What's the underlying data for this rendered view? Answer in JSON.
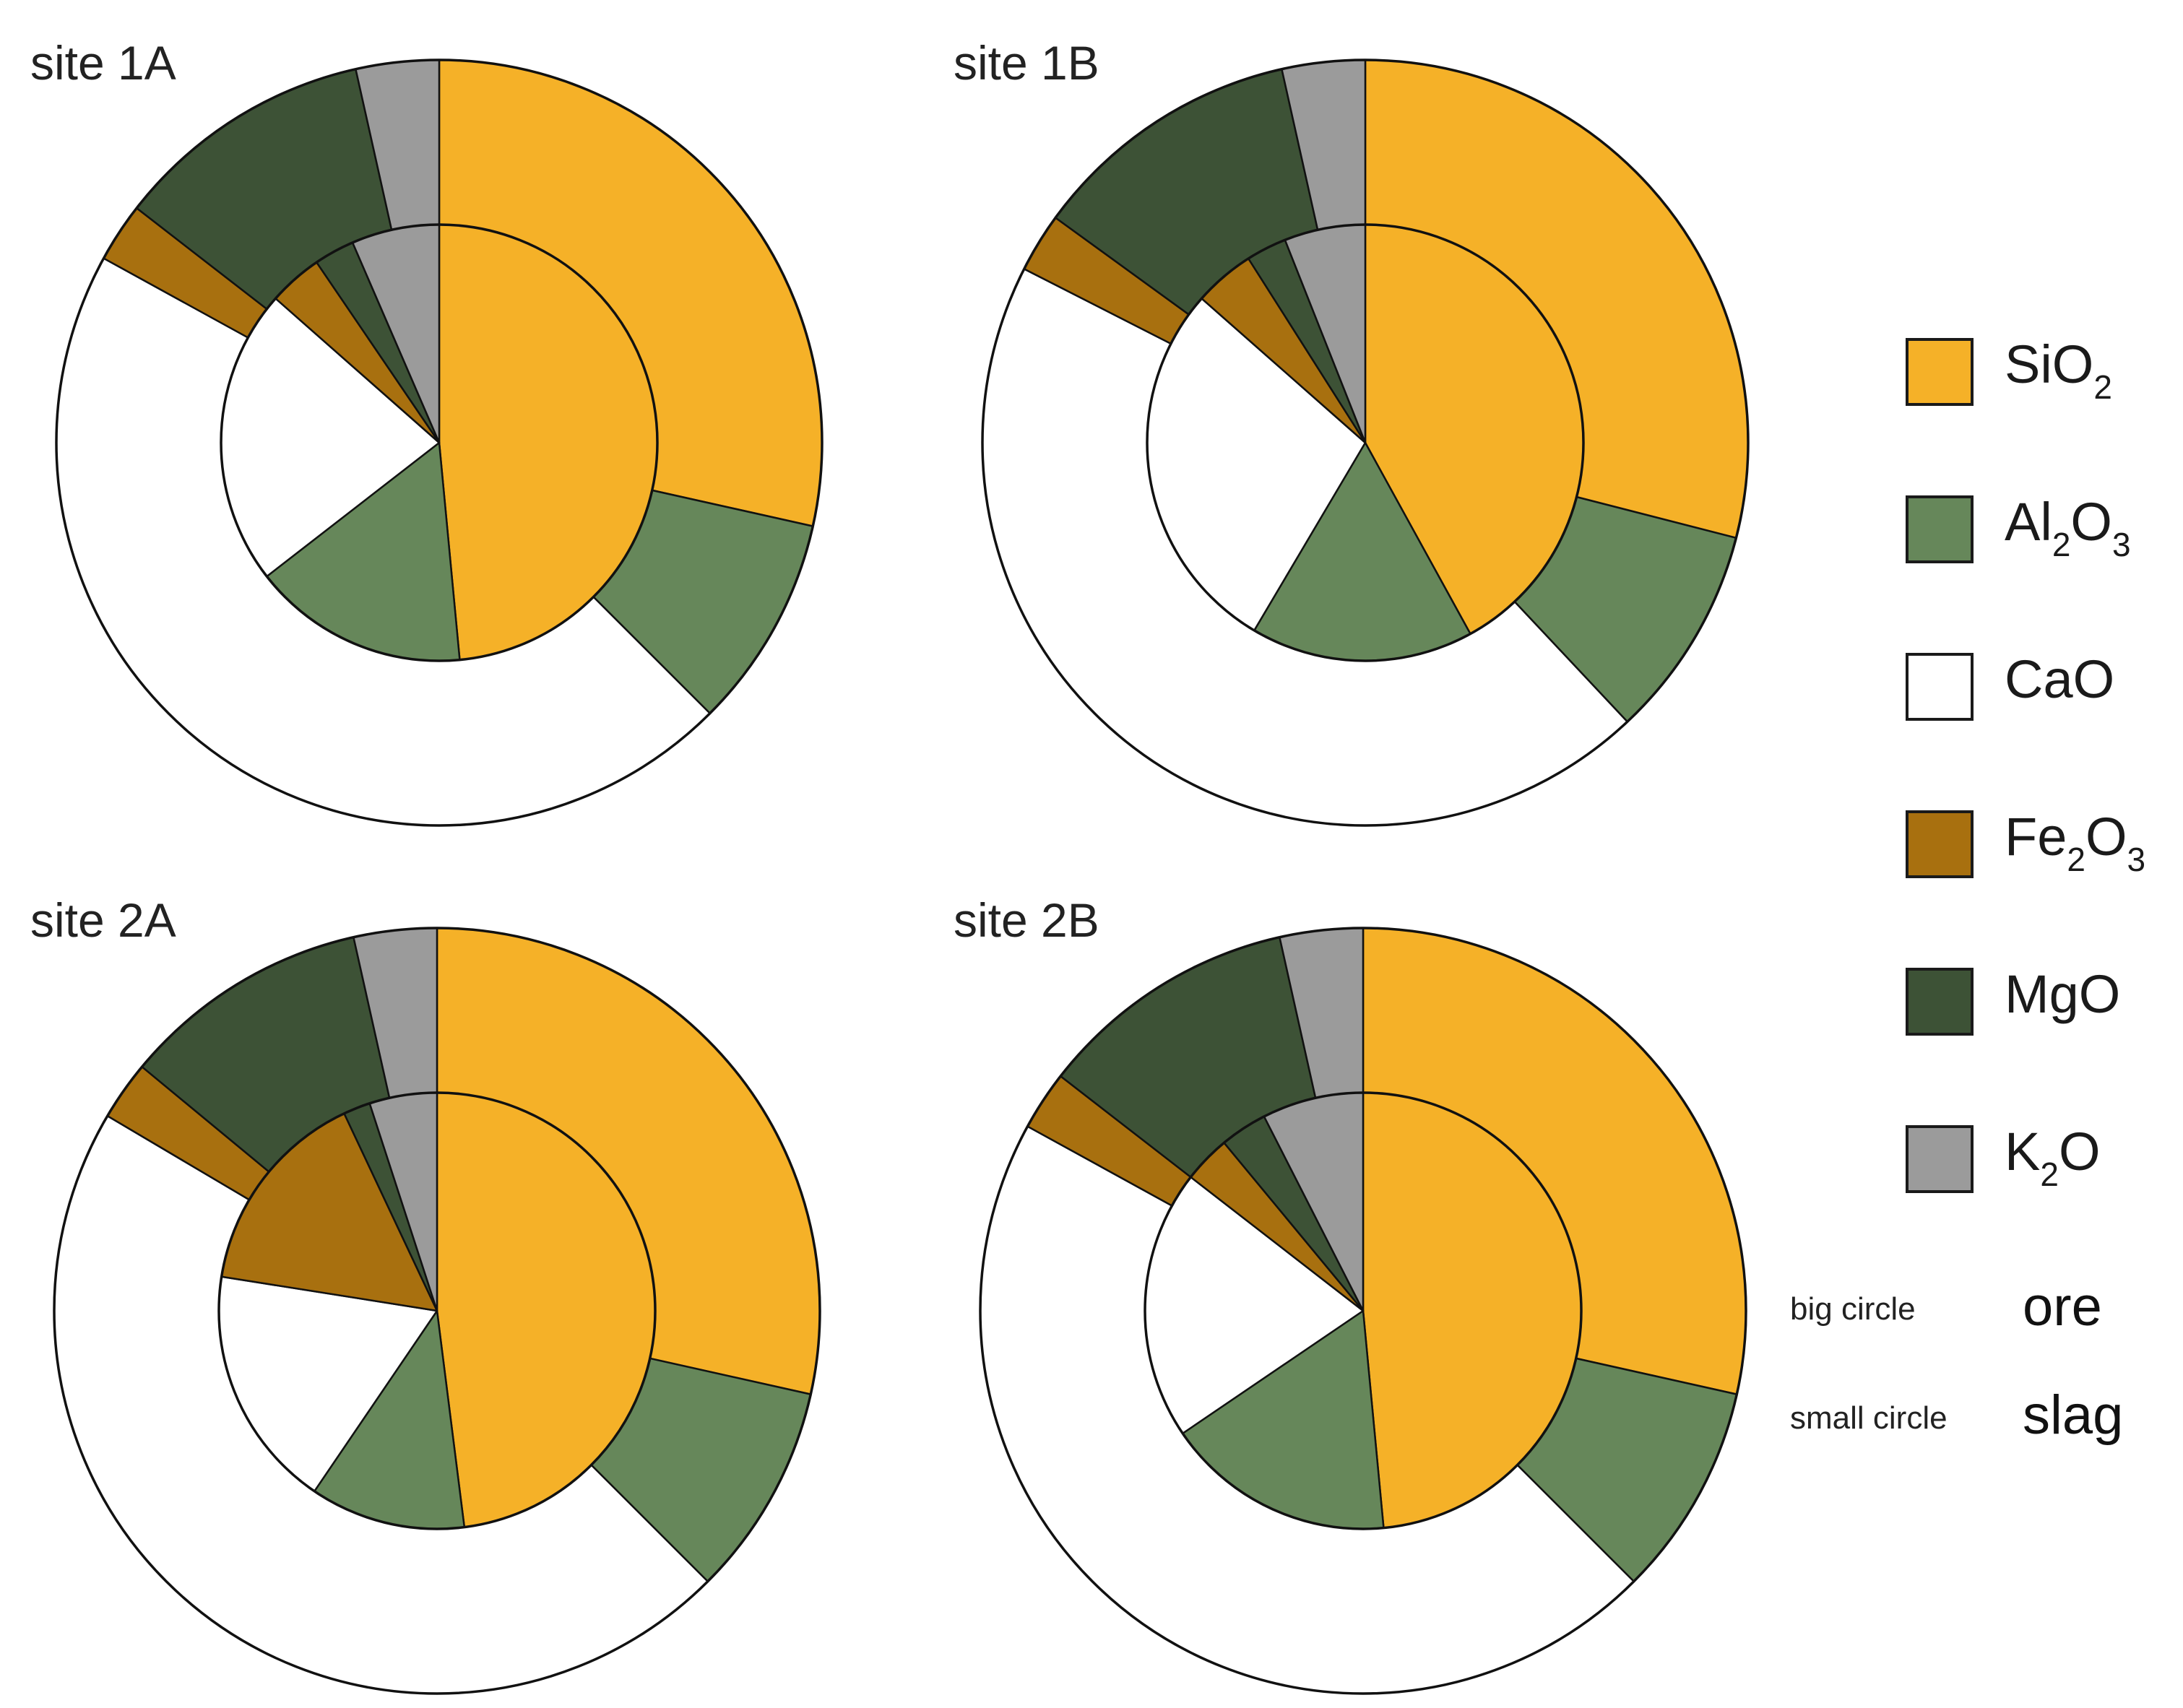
{
  "chart_data": {
    "type": "pie",
    "subtype": "nested-donut",
    "components": [
      "SiO2",
      "Al2O3",
      "CaO",
      "Fe2O3",
      "MgO",
      "K2O"
    ],
    "colors": {
      "SiO2": "#F5B128",
      "Al2O3": "#66875A",
      "CaO": "#FFFFFF",
      "Fe2O3": "#A8700F",
      "MgO": "#3D5236",
      "K2O": "#9B9B9B"
    },
    "legend": [
      {
        "key": "SiO2",
        "base": "SiO",
        "sub": "2",
        "after": "",
        "sub2": ""
      },
      {
        "key": "Al2O3",
        "base": "Al",
        "sub": "2",
        "after": "O",
        "sub2": "3"
      },
      {
        "key": "CaO",
        "base": "CaO",
        "sub": "",
        "after": "",
        "sub2": ""
      },
      {
        "key": "Fe2O3",
        "base": "Fe",
        "sub": "2",
        "after": "O",
        "sub2": "3"
      },
      {
        "key": "MgO",
        "base": "MgO",
        "sub": "",
        "after": "",
        "sub2": ""
      },
      {
        "key": "K2O",
        "base": "K",
        "sub": "2",
        "after": "O",
        "sub2": ""
      }
    ],
    "notes": [
      {
        "small": "big circle",
        "big": "ore"
      },
      {
        "small": "small circle",
        "big": "slag"
      }
    ],
    "sites": [
      {
        "title": "site 1A",
        "ore": {
          "SiO2": 28.5,
          "Al2O3": 9.0,
          "CaO": 45.5,
          "Fe2O3": 2.5,
          "MgO": 11.0,
          "K2O": 3.5
        },
        "slag": {
          "SiO2": 48.5,
          "Al2O3": 16.0,
          "CaO": 22.0,
          "Fe2O3": 4.0,
          "MgO": 3.0,
          "K2O": 6.5
        }
      },
      {
        "title": "site 1B",
        "ore": {
          "SiO2": 29.0,
          "Al2O3": 9.0,
          "CaO": 44.5,
          "Fe2O3": 2.5,
          "MgO": 11.5,
          "K2O": 3.5
        },
        "slag": {
          "SiO2": 42.0,
          "Al2O3": 16.5,
          "CaO": 28.0,
          "Fe2O3": 4.5,
          "MgO": 3.0,
          "K2O": 6.0
        }
      },
      {
        "title": "site 2A",
        "ore": {
          "SiO2": 28.5,
          "Al2O3": 9.0,
          "CaO": 46.0,
          "Fe2O3": 2.5,
          "MgO": 10.5,
          "K2O": 3.5
        },
        "slag": {
          "SiO2": 48.0,
          "Al2O3": 11.5,
          "CaO": 18.0,
          "Fe2O3": 15.5,
          "MgO": 2.0,
          "K2O": 5.0
        }
      },
      {
        "title": "site 2B",
        "ore": {
          "SiO2": 28.5,
          "Al2O3": 9.0,
          "CaO": 45.5,
          "Fe2O3": 2.5,
          "MgO": 11.0,
          "K2O": 3.5
        },
        "slag": {
          "SiO2": 48.5,
          "Al2O3": 17.0,
          "CaO": 20.0,
          "Fe2O3": 3.5,
          "MgO": 3.5,
          "K2O": 7.5
        }
      }
    ]
  }
}
